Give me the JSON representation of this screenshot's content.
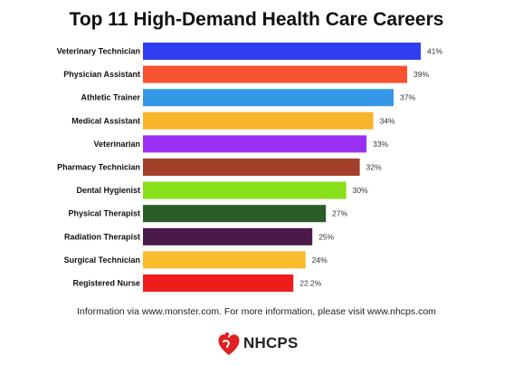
{
  "chart_data": {
    "type": "bar",
    "orientation": "horizontal",
    "title": "Top 11 High-Demand Health Care Careers",
    "categories": [
      "Veterinary Technician",
      "Physician Assistant",
      "Athletic Trainer",
      "Medical Assistant",
      "Veterinarian",
      "Pharmacy Technician",
      "Dental Hygienist",
      "Physical Therapist",
      "Radiation Therapist",
      "Surgical Technician",
      "Registered Nurse"
    ],
    "values": [
      41,
      39,
      37,
      34,
      33,
      32,
      30,
      27,
      25,
      24,
      22.2
    ],
    "value_labels": [
      "41%",
      "39%",
      "37%",
      "34%",
      "33%",
      "32%",
      "30%",
      "27%",
      "25%",
      "24%",
      "22.2%"
    ],
    "colors": [
      "#2f3ff0",
      "#f9522f",
      "#3498e6",
      "#f7b52a",
      "#9b30f5",
      "#a23f28",
      "#87e01a",
      "#2a5c26",
      "#4a1a4a",
      "#f7bb2b",
      "#f01c1c"
    ],
    "xlim": [
      0,
      41
    ],
    "grid": false,
    "legend": "none"
  },
  "source_note": "Information via www.monster.com. For more information, please visit www.nhcps.com",
  "logo": {
    "text": "NHCPS",
    "icon": "heart-hand-icon",
    "color": "#e02020"
  }
}
